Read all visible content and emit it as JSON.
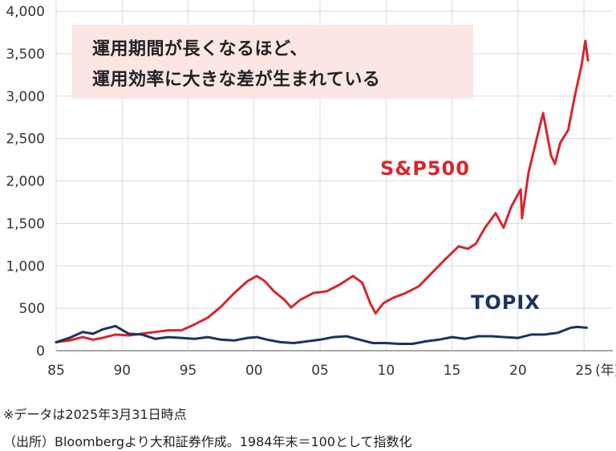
{
  "callout": {
    "line1": "運用期間が長くなるほど、",
    "line2": "運用効率に大きな差が生まれている"
  },
  "footnotes": {
    "note1": "※データは2025年3月31日時点",
    "note2": "（出所）Bloombergより大和証券作成。1984年末＝100として指数化"
  },
  "colors": {
    "sp500": "#d7262e",
    "topix": "#1c3360"
  },
  "chart_data": {
    "type": "line",
    "x_unit": "year",
    "x_tick_labels": [
      "85",
      "90",
      "95",
      "00",
      "05",
      "10",
      "15",
      "20",
      "25"
    ],
    "x_unit_label": "(年)",
    "xlim": [
      1985,
      2025.6
    ],
    "ylim": [
      0,
      4000
    ],
    "y_ticks": [
      0,
      500,
      1000,
      1500,
      2000,
      2500,
      3000,
      3500,
      4000
    ],
    "y_tick_labels": [
      "0",
      "500",
      "1,000",
      "1,500",
      "2,000",
      "2,500",
      "3,000",
      "3,500",
      "4,000"
    ],
    "grid": true,
    "series": [
      {
        "name": "S&P500",
        "color": "#d7262e",
        "points": [
          [
            1985.0,
            100
          ],
          [
            1986.0,
            120
          ],
          [
            1987.0,
            160
          ],
          [
            1987.8,
            130
          ],
          [
            1988.5,
            150
          ],
          [
            1989.5,
            190
          ],
          [
            1990.5,
            180
          ],
          [
            1991.5,
            200
          ],
          [
            1992.5,
            220
          ],
          [
            1993.5,
            240
          ],
          [
            1994.5,
            240
          ],
          [
            1995.5,
            310
          ],
          [
            1996.5,
            390
          ],
          [
            1997.5,
            520
          ],
          [
            1998.5,
            680
          ],
          [
            1999.5,
            820
          ],
          [
            2000.2,
            880
          ],
          [
            2000.8,
            820
          ],
          [
            2001.5,
            700
          ],
          [
            2002.3,
            600
          ],
          [
            2002.8,
            510
          ],
          [
            2003.5,
            600
          ],
          [
            2004.5,
            680
          ],
          [
            2005.5,
            700
          ],
          [
            2006.5,
            780
          ],
          [
            2007.5,
            880
          ],
          [
            2008.2,
            800
          ],
          [
            2008.8,
            560
          ],
          [
            2009.2,
            440
          ],
          [
            2009.8,
            560
          ],
          [
            2010.5,
            620
          ],
          [
            2011.5,
            680
          ],
          [
            2012.5,
            760
          ],
          [
            2013.5,
            920
          ],
          [
            2014.5,
            1080
          ],
          [
            2015.5,
            1230
          ],
          [
            2016.2,
            1200
          ],
          [
            2016.8,
            1260
          ],
          [
            2017.5,
            1450
          ],
          [
            2018.3,
            1620
          ],
          [
            2018.9,
            1450
          ],
          [
            2019.5,
            1700
          ],
          [
            2020.2,
            1900
          ],
          [
            2020.3,
            1560
          ],
          [
            2020.8,
            2100
          ],
          [
            2021.5,
            2550
          ],
          [
            2021.9,
            2800
          ],
          [
            2022.5,
            2300
          ],
          [
            2022.8,
            2200
          ],
          [
            2023.2,
            2450
          ],
          [
            2023.8,
            2600
          ],
          [
            2024.3,
            3000
          ],
          [
            2024.8,
            3350
          ],
          [
            2025.1,
            3650
          ],
          [
            2025.3,
            3420
          ]
        ]
      },
      {
        "name": "TOPIX",
        "color": "#1c3360",
        "points": [
          [
            1985.0,
            100
          ],
          [
            1986.0,
            150
          ],
          [
            1987.0,
            220
          ],
          [
            1987.8,
            200
          ],
          [
            1988.5,
            250
          ],
          [
            1989.5,
            290
          ],
          [
            1990.5,
            200
          ],
          [
            1991.5,
            190
          ],
          [
            1992.5,
            140
          ],
          [
            1993.5,
            160
          ],
          [
            1994.5,
            150
          ],
          [
            1995.5,
            140
          ],
          [
            1996.5,
            160
          ],
          [
            1997.5,
            130
          ],
          [
            1998.5,
            120
          ],
          [
            1999.5,
            150
          ],
          [
            2000.2,
            160
          ],
          [
            2001.0,
            130
          ],
          [
            2002.0,
            100
          ],
          [
            2003.0,
            90
          ],
          [
            2004.0,
            110
          ],
          [
            2005.0,
            130
          ],
          [
            2006.0,
            160
          ],
          [
            2007.0,
            170
          ],
          [
            2008.0,
            130
          ],
          [
            2009.0,
            90
          ],
          [
            2010.0,
            90
          ],
          [
            2011.0,
            80
          ],
          [
            2012.0,
            80
          ],
          [
            2013.0,
            110
          ],
          [
            2014.0,
            130
          ],
          [
            2015.0,
            160
          ],
          [
            2016.0,
            140
          ],
          [
            2017.0,
            170
          ],
          [
            2018.0,
            170
          ],
          [
            2019.0,
            160
          ],
          [
            2020.0,
            150
          ],
          [
            2021.0,
            190
          ],
          [
            2022.0,
            190
          ],
          [
            2023.0,
            210
          ],
          [
            2024.0,
            270
          ],
          [
            2024.5,
            280
          ],
          [
            2025.2,
            270
          ]
        ]
      }
    ]
  }
}
